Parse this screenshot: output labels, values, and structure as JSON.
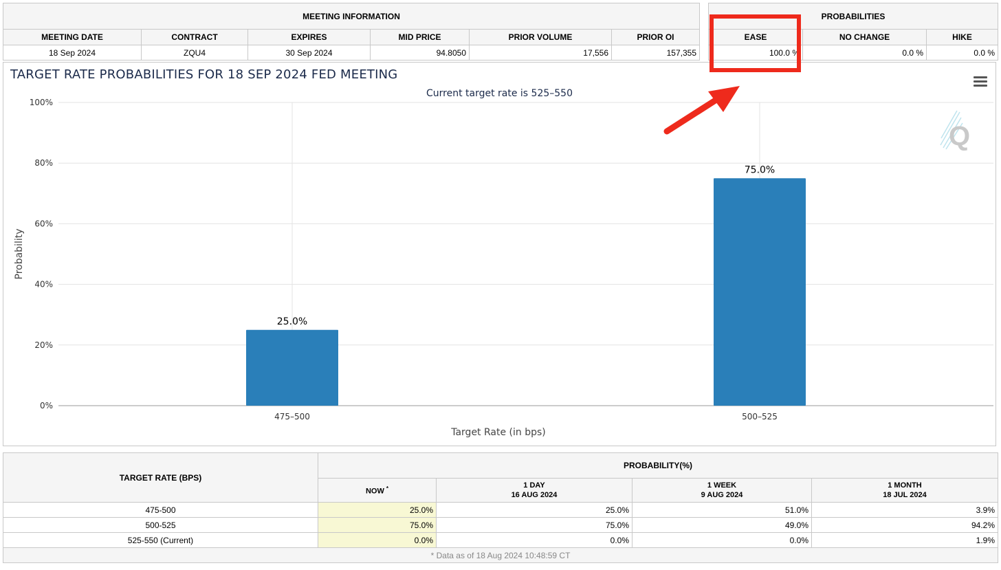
{
  "meeting_info": {
    "title": "MEETING INFORMATION",
    "columns": [
      "MEETING DATE",
      "CONTRACT",
      "EXPIRES",
      "MID PRICE",
      "PRIOR VOLUME",
      "PRIOR OI"
    ],
    "values": [
      "18 Sep 2024",
      "ZQU4",
      "30 Sep 2024",
      "94.8050",
      "17,556",
      "157,355"
    ]
  },
  "probabilities": {
    "title": "PROBABILITIES",
    "columns": [
      "EASE",
      "NO CHANGE",
      "HIKE"
    ],
    "values": [
      "100.0 %",
      "0.0 %",
      "0.0 %"
    ]
  },
  "chart_data": {
    "type": "bar",
    "title": "TARGET RATE PROBABILITIES FOR 18 SEP 2024 FED MEETING",
    "subtitle": "Current target rate is 525–550",
    "xlabel": "Target Rate (in bps)",
    "ylabel": "Probability",
    "categories": [
      "475–500",
      "500–525"
    ],
    "values": [
      25.0,
      75.0
    ],
    "data_labels": [
      "25.0%",
      "75.0%"
    ],
    "ylim": [
      0,
      100
    ],
    "yticks": [
      "0%",
      "20%",
      "40%",
      "60%",
      "80%",
      "100%"
    ],
    "bar_color": "#2a7fb9",
    "grid": true
  },
  "detail_table": {
    "row_header": "TARGET RATE (BPS)",
    "prob_header": "PROBABILITY(%)",
    "columns": [
      {
        "line1": "NOW",
        "line2": ""
      },
      {
        "line1": "1 DAY",
        "line2": "16 AUG 2024"
      },
      {
        "line1": "1 WEEK",
        "line2": "9 AUG 2024"
      },
      {
        "line1": "1 MONTH",
        "line2": "18 JUL 2024"
      }
    ],
    "now_marker": "*",
    "rows": [
      {
        "label": "475-500",
        "values": [
          "25.0%",
          "25.0%",
          "51.0%",
          "3.9%"
        ]
      },
      {
        "label": "500-525",
        "values": [
          "75.0%",
          "75.0%",
          "49.0%",
          "94.2%"
        ]
      },
      {
        "label": "525-550 (Current)",
        "values": [
          "0.0%",
          "0.0%",
          "0.0%",
          "1.9%"
        ]
      }
    ],
    "footnote": "* Data as of 18 Aug 2024 10:48:59 CT"
  },
  "annotation": {
    "highlight_color": "#ee2a1c"
  }
}
